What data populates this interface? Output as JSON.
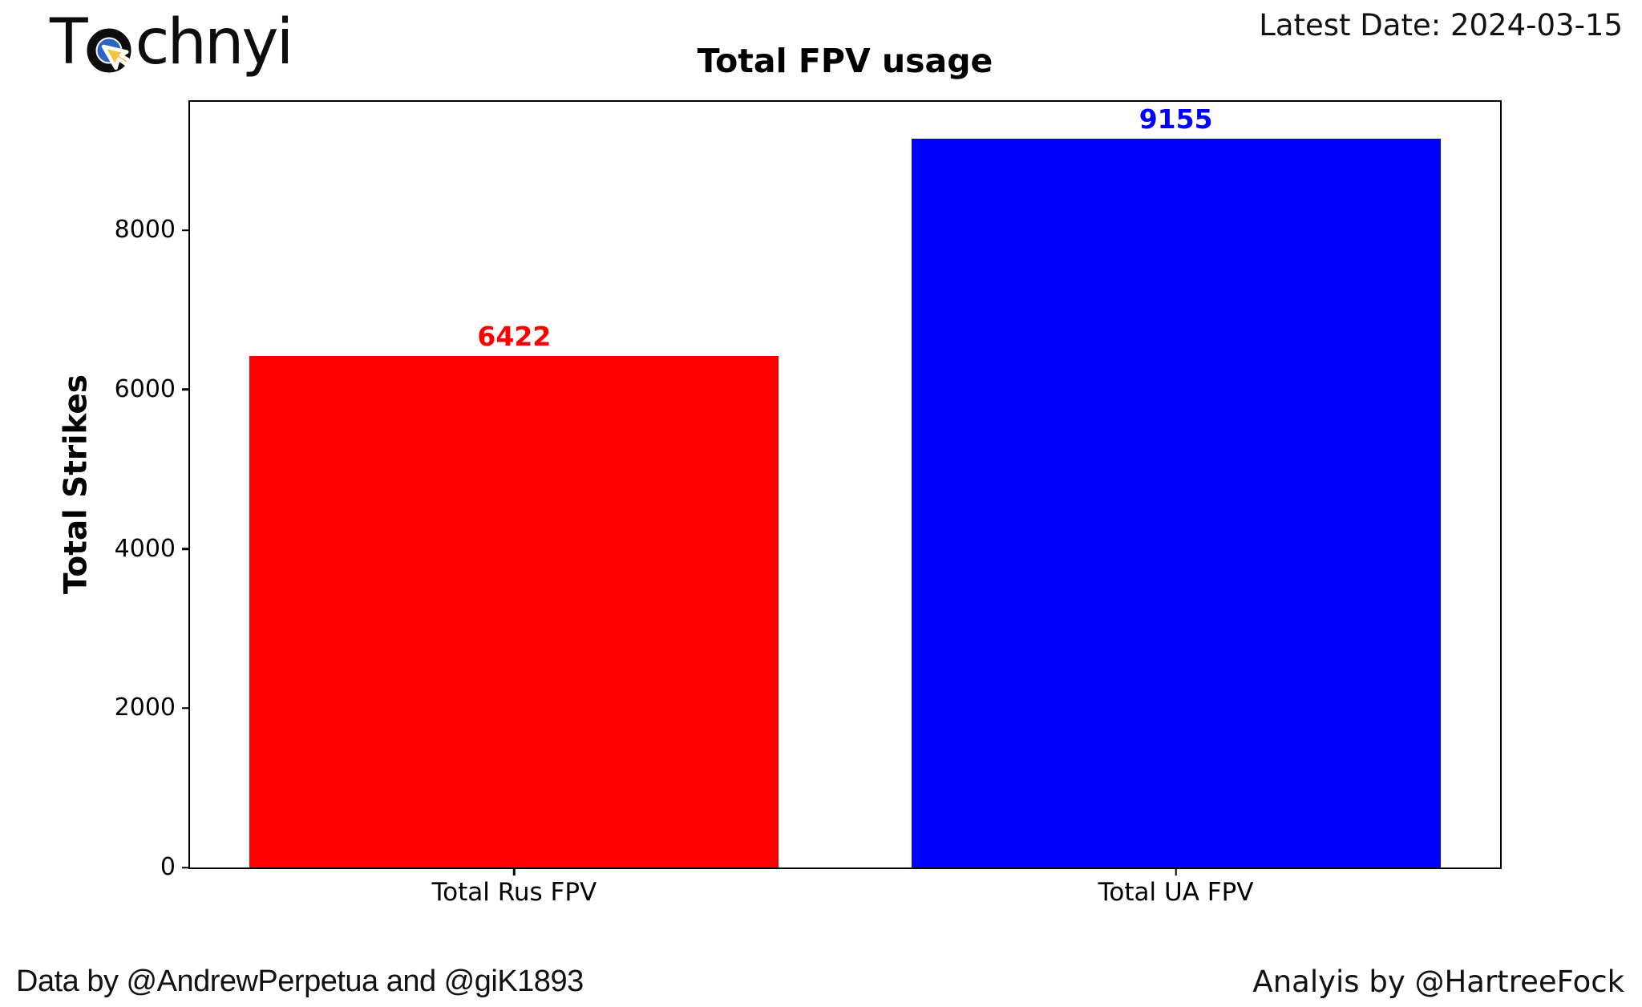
{
  "logo": {
    "prefix": "T",
    "suffix": "chnyi",
    "icon": "cursor-target-icon",
    "icon_colors": {
      "outer_ring": "#0d0d0d",
      "inner_ring": "#2d64c8",
      "cursor": "#f0c440"
    }
  },
  "header": {
    "latest_date": "Latest Date: 2024-03-15"
  },
  "chart_data": {
    "type": "bar",
    "title": "Total FPV usage",
    "categories": [
      "Total Rus FPV",
      "Total UA FPV"
    ],
    "values": [
      6422,
      9155
    ],
    "bar_colors": [
      "#ff0000",
      "#0000ff"
    ],
    "value_label_colors": [
      "#ff0000",
      "#0000ff"
    ],
    "xlabel": "",
    "ylabel": "Total Strikes",
    "ylim": [
      0,
      9613
    ],
    "yticks": [
      0,
      2000,
      4000,
      6000,
      8000
    ],
    "grid": false,
    "legend": false,
    "plot_background": "#ffffff",
    "spine_color": "#000000"
  },
  "footer": {
    "credits_left": "Data by @AndrewPerpetua and @giK1893",
    "credits_right": "Analyis by @HartreeFock"
  }
}
